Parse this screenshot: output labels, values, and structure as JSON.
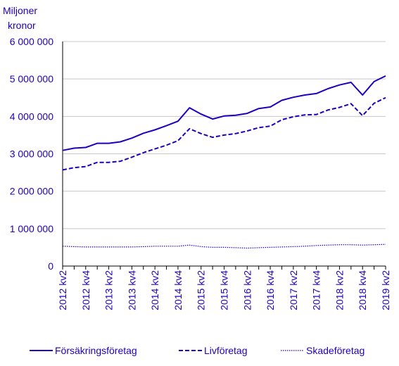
{
  "chart_data": {
    "type": "line",
    "ylabel": [
      "Miljoner",
      "kronor"
    ],
    "ylim": [
      0,
      6000000
    ],
    "yticks": [
      0,
      1000000,
      2000000,
      3000000,
      4000000,
      5000000,
      6000000
    ],
    "ytick_labels": [
      "0",
      "1 000 000",
      "2 000 000",
      "3 000 000",
      "4 000 000",
      "5 000 000",
      "6 000 000"
    ],
    "grid": true,
    "legend_position": "bottom",
    "x": [
      "2012 kv2",
      "2012 kv3",
      "2012 kv4",
      "2013 kv1",
      "2013 kv2",
      "2013 kv3",
      "2013 kv4",
      "2014 kv1",
      "2014 kv2",
      "2014 kv3",
      "2014 kv4",
      "2015 kv1",
      "2015 kv2",
      "2015 kv3",
      "2015 kv4",
      "2016 kv1",
      "2016 kv2",
      "2016 kv3",
      "2016 kv4",
      "2017 kv1",
      "2017 kv2",
      "2017 kv3",
      "2017 kv4",
      "2018 kv1",
      "2018 kv2",
      "2018 kv3",
      "2018 kv4",
      "2019 kv1",
      "2019 kv2"
    ],
    "xtick_labels": [
      "2012 kv2",
      "2012 kv4",
      "2013 kv2",
      "2013 kv4",
      "2014 kv2",
      "2014 kv4",
      "2015 kv2",
      "2015 kv4",
      "2016 kv2",
      "2016 kv4",
      "2017 kv2",
      "2017 kv4",
      "2018 kv2",
      "2018 kv4",
      "2019 kv2"
    ],
    "series": [
      {
        "name": "Försäkringsföretag",
        "style": "solid",
        "color": "#1e00be",
        "values": [
          3090000,
          3150000,
          3170000,
          3280000,
          3280000,
          3320000,
          3420000,
          3550000,
          3640000,
          3750000,
          3870000,
          4230000,
          4060000,
          3930000,
          4010000,
          4030000,
          4080000,
          4210000,
          4250000,
          4430000,
          4510000,
          4570000,
          4610000,
          4740000,
          4840000,
          4910000,
          4570000,
          4930000,
          5080000
        ]
      },
      {
        "name": "Livföretag",
        "style": "dashed",
        "color": "#1e00be",
        "values": [
          2570000,
          2630000,
          2660000,
          2770000,
          2770000,
          2800000,
          2910000,
          3030000,
          3130000,
          3230000,
          3350000,
          3670000,
          3540000,
          3440000,
          3500000,
          3540000,
          3610000,
          3700000,
          3740000,
          3910000,
          3990000,
          4040000,
          4050000,
          4170000,
          4240000,
          4340000,
          4020000,
          4350000,
          4500000
        ]
      },
      {
        "name": "Skadeföretag",
        "style": "dotted",
        "color": "#1e00be",
        "values": [
          530000,
          520000,
          510000,
          510000,
          510000,
          510000,
          510000,
          520000,
          530000,
          530000,
          530000,
          560000,
          520000,
          500000,
          500000,
          490000,
          480000,
          490000,
          500000,
          510000,
          520000,
          530000,
          550000,
          560000,
          570000,
          570000,
          560000,
          570000,
          580000
        ]
      }
    ]
  },
  "colors": {
    "accent": "#1e00be",
    "grid": "#c8c8c8",
    "axis": "#000000"
  }
}
